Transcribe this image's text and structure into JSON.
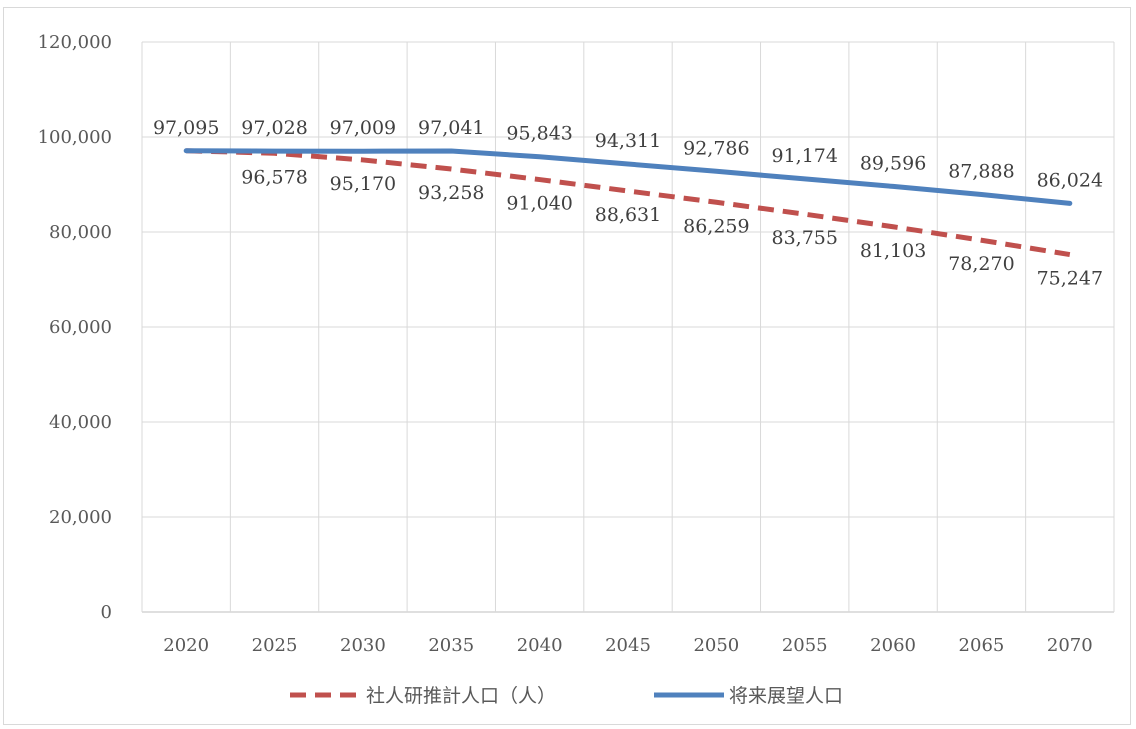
{
  "chart_data": {
    "type": "line",
    "title": "",
    "xlabel": "",
    "ylabel": "",
    "categories": [
      "2020",
      "2025",
      "2030",
      "2035",
      "2040",
      "2045",
      "2050",
      "2055",
      "2060",
      "2065",
      "2070"
    ],
    "ylim": [
      0,
      120000
    ],
    "yticks": [
      0,
      20000,
      40000,
      60000,
      80000,
      100000,
      120000
    ],
    "ytick_labels": [
      "0",
      "20,000",
      "40,000",
      "60,000",
      "80,000",
      "100,000",
      "120,000"
    ],
    "grid": true,
    "legend_position": "bottom",
    "series": [
      {
        "name": "社人研推計人口（人）",
        "style": "dashed",
        "color": "#c0504d",
        "values": [
          97095,
          96578,
          95170,
          93258,
          91040,
          88631,
          86259,
          83755,
          81103,
          78270,
          75247
        ],
        "labels": [
          "",
          "96,578",
          "95,170",
          "93,258",
          "91,040",
          "88,631",
          "86,259",
          "83,755",
          "81,103",
          "78,270",
          "75,247"
        ]
      },
      {
        "name": "将来展望人口",
        "style": "solid",
        "color": "#4f81bd",
        "values": [
          97095,
          97028,
          97009,
          97041,
          95843,
          94311,
          92786,
          91174,
          89596,
          87888,
          86024
        ],
        "labels": [
          "97,095",
          "97,028",
          "97,009",
          "97,041",
          "95,843",
          "94,311",
          "92,786",
          "91,174",
          "89,596",
          "87,888",
          "86,024"
        ]
      }
    ]
  }
}
